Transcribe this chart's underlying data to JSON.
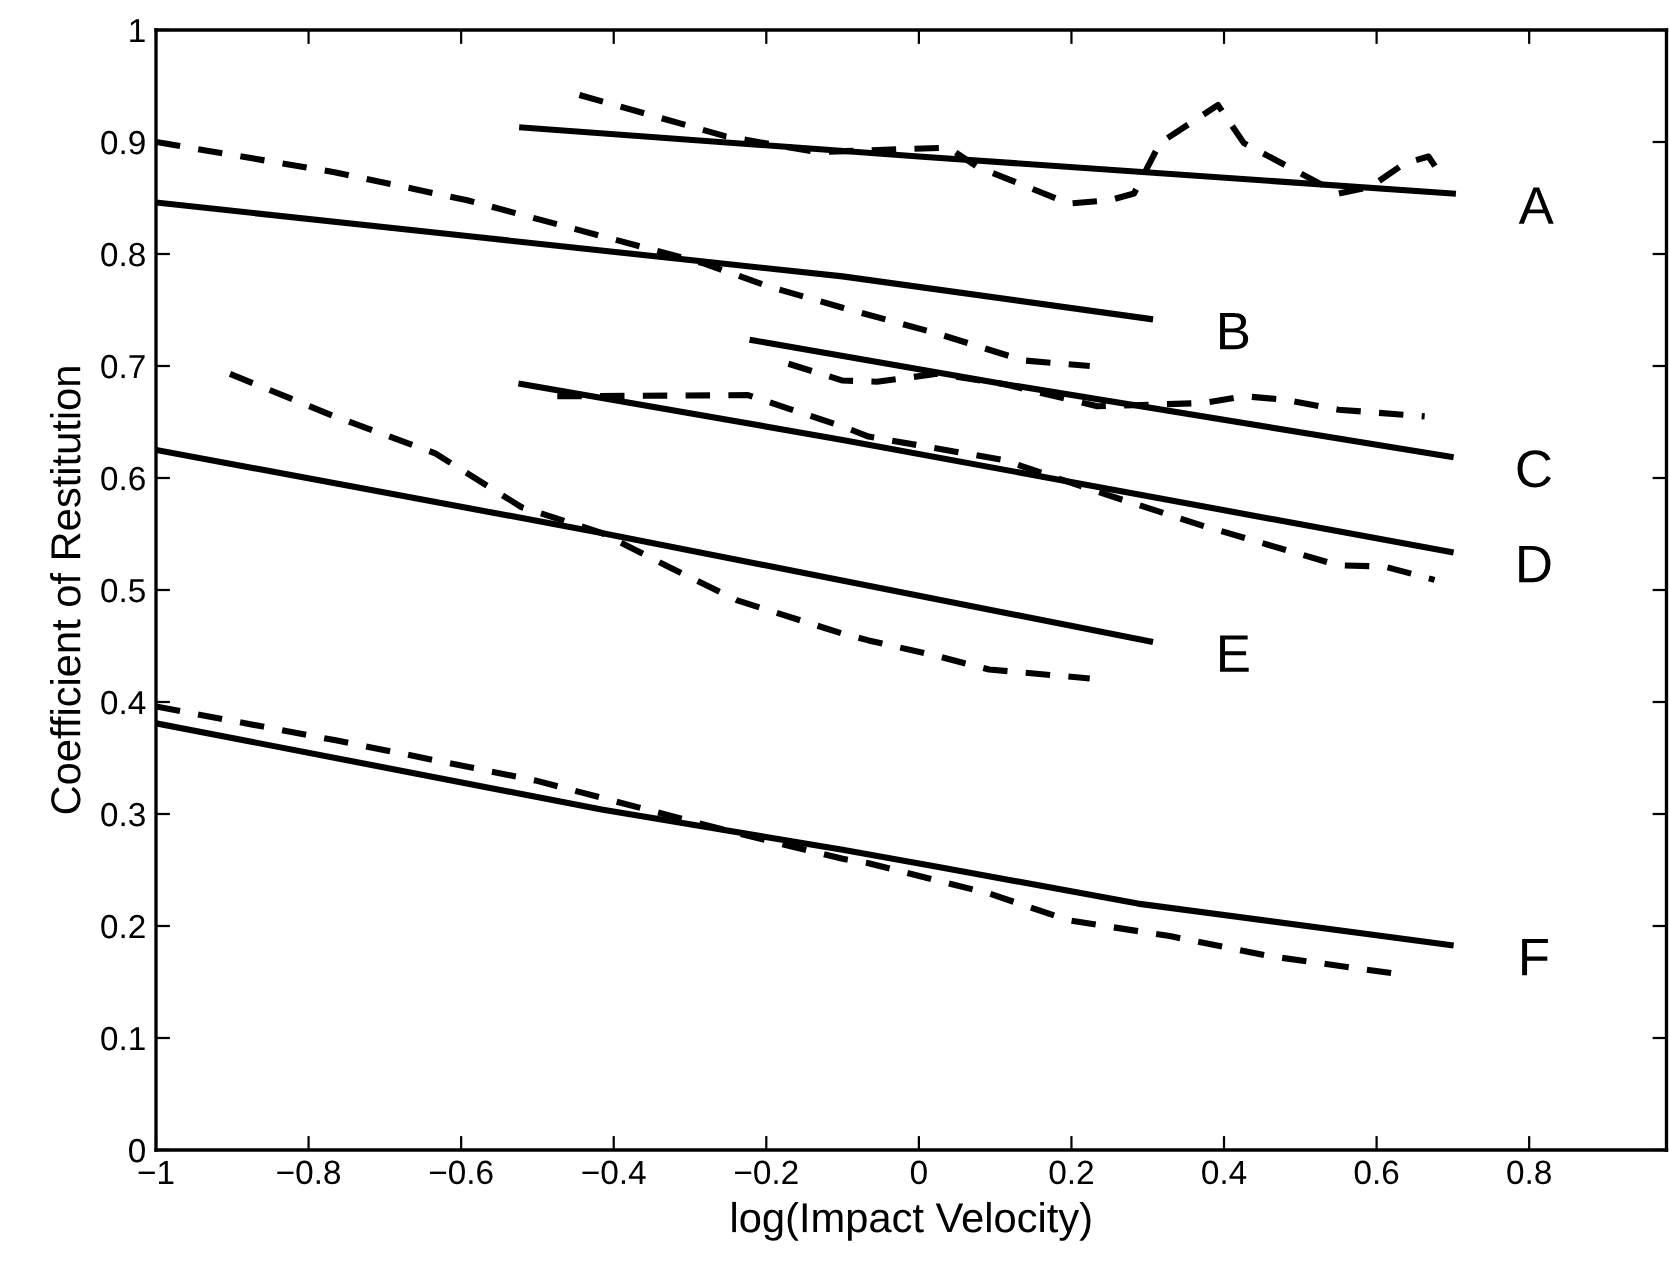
{
  "chart_data": {
    "type": "line",
    "xlabel": "log(Impact Velocity)",
    "ylabel": "Coefficient of Restitution",
    "xlim": [
      -1,
      0.98
    ],
    "ylim": [
      0,
      1
    ],
    "xticks": [
      -1,
      -0.8,
      -0.6,
      -0.4,
      -0.2,
      0,
      0.2,
      0.4,
      0.6,
      0.8
    ],
    "yticks": [
      0,
      0.1,
      0.2,
      0.3,
      0.4,
      0.5,
      0.6,
      0.7,
      0.8,
      0.9,
      1
    ],
    "grid": false,
    "legend": "right",
    "marker": "none",
    "series": [
      {
        "name": "A",
        "color": "#000000",
        "line_style": "solid",
        "x": [
          -0.52,
          0,
          0.7
        ],
        "values": [
          0.913,
          0.887,
          0.854
        ]
      },
      {
        "color": "#000000",
        "line_style": "dashed",
        "x": [
          -0.445,
          -0.253,
          -0.134,
          0.039,
          0.076,
          0.197,
          0.25,
          0.282,
          0.316,
          0.392,
          0.426,
          0.55,
          0.592,
          0.637,
          0.668,
          0.684
        ],
        "values": [
          0.942,
          0.905,
          0.891,
          0.895,
          0.878,
          0.845,
          0.848,
          0.854,
          0.899,
          0.933,
          0.899,
          0.854,
          0.86,
          0.881,
          0.887,
          0.871
        ]
      },
      {
        "name": "B",
        "color": "#000000",
        "line_style": "solid",
        "x": [
          -1,
          -0.592,
          -0.1,
          0.303
        ],
        "values": [
          0.846,
          0.816,
          0.78,
          0.742
        ]
      },
      {
        "color": "#000000",
        "line_style": "dashed",
        "x": [
          -1,
          -0.766,
          -0.592,
          -0.416,
          -0.284,
          -0.197,
          -0.1,
          0.024,
          0.137,
          0.224
        ],
        "values": [
          0.9,
          0.873,
          0.848,
          0.816,
          0.792,
          0.771,
          0.752,
          0.729,
          0.705,
          0.7
        ]
      },
      {
        "name": "C",
        "color": "#000000",
        "line_style": "solid",
        "x": [
          -0.218,
          0.111,
          0.697
        ],
        "values": [
          0.723,
          0.684,
          0.619
        ]
      },
      {
        "color": "#000000",
        "line_style": "dashed",
        "x": [
          -0.171,
          -0.1,
          -0.055,
          0.024,
          0.111,
          0.234,
          0.374,
          0.426,
          0.479,
          0.55,
          0.663
        ],
        "values": [
          0.702,
          0.687,
          0.686,
          0.693,
          0.684,
          0.664,
          0.667,
          0.673,
          0.67,
          0.661,
          0.655
        ]
      },
      {
        "name": "D",
        "color": "#000000",
        "line_style": "solid",
        "x": [
          -0.521,
          -0.1,
          0.697
        ],
        "values": [
          0.684,
          0.634,
          0.534
        ]
      },
      {
        "color": "#000000",
        "line_style": "dashed",
        "x": [
          -0.474,
          -0.45,
          -0.224,
          -0.171,
          -0.1,
          -0.066,
          0.111,
          0.242,
          0.374,
          0.55,
          0.61,
          0.676
        ],
        "values": [
          0.673,
          0.673,
          0.674,
          0.662,
          0.646,
          0.637,
          0.616,
          0.586,
          0.557,
          0.522,
          0.521,
          0.509
        ]
      },
      {
        "name": "E",
        "color": "#000000",
        "line_style": "solid",
        "x": [
          -1,
          -0.416,
          0.303
        ],
        "values": [
          0.625,
          0.551,
          0.454
        ]
      },
      {
        "color": "#000000",
        "line_style": "dashed",
        "x": [
          -0.903,
          -0.766,
          -0.634,
          -0.521,
          -0.416,
          -0.329,
          -0.239,
          -0.1,
          -0.066,
          0.024,
          0.092,
          0.224
        ],
        "values": [
          0.693,
          0.655,
          0.622,
          0.574,
          0.551,
          0.521,
          0.491,
          0.461,
          0.455,
          0.441,
          0.429,
          0.421
        ]
      },
      {
        "name": "F",
        "color": "#000000",
        "line_style": "solid",
        "x": [
          -1,
          -0.416,
          -0.1,
          0.024,
          0.287,
          0.697
        ],
        "values": [
          0.381,
          0.304,
          0.268,
          0.253,
          0.22,
          0.183
        ]
      },
      {
        "color": "#000000",
        "line_style": "dashed",
        "x": [
          -1,
          -0.766,
          -0.503,
          -0.239,
          -0.1,
          -0.066,
          0.092,
          0.197,
          0.329,
          0.461,
          0.629
        ],
        "values": [
          0.396,
          0.366,
          0.33,
          0.283,
          0.26,
          0.256,
          0.229,
          0.205,
          0.191,
          0.173,
          0.157
        ]
      }
    ]
  }
}
